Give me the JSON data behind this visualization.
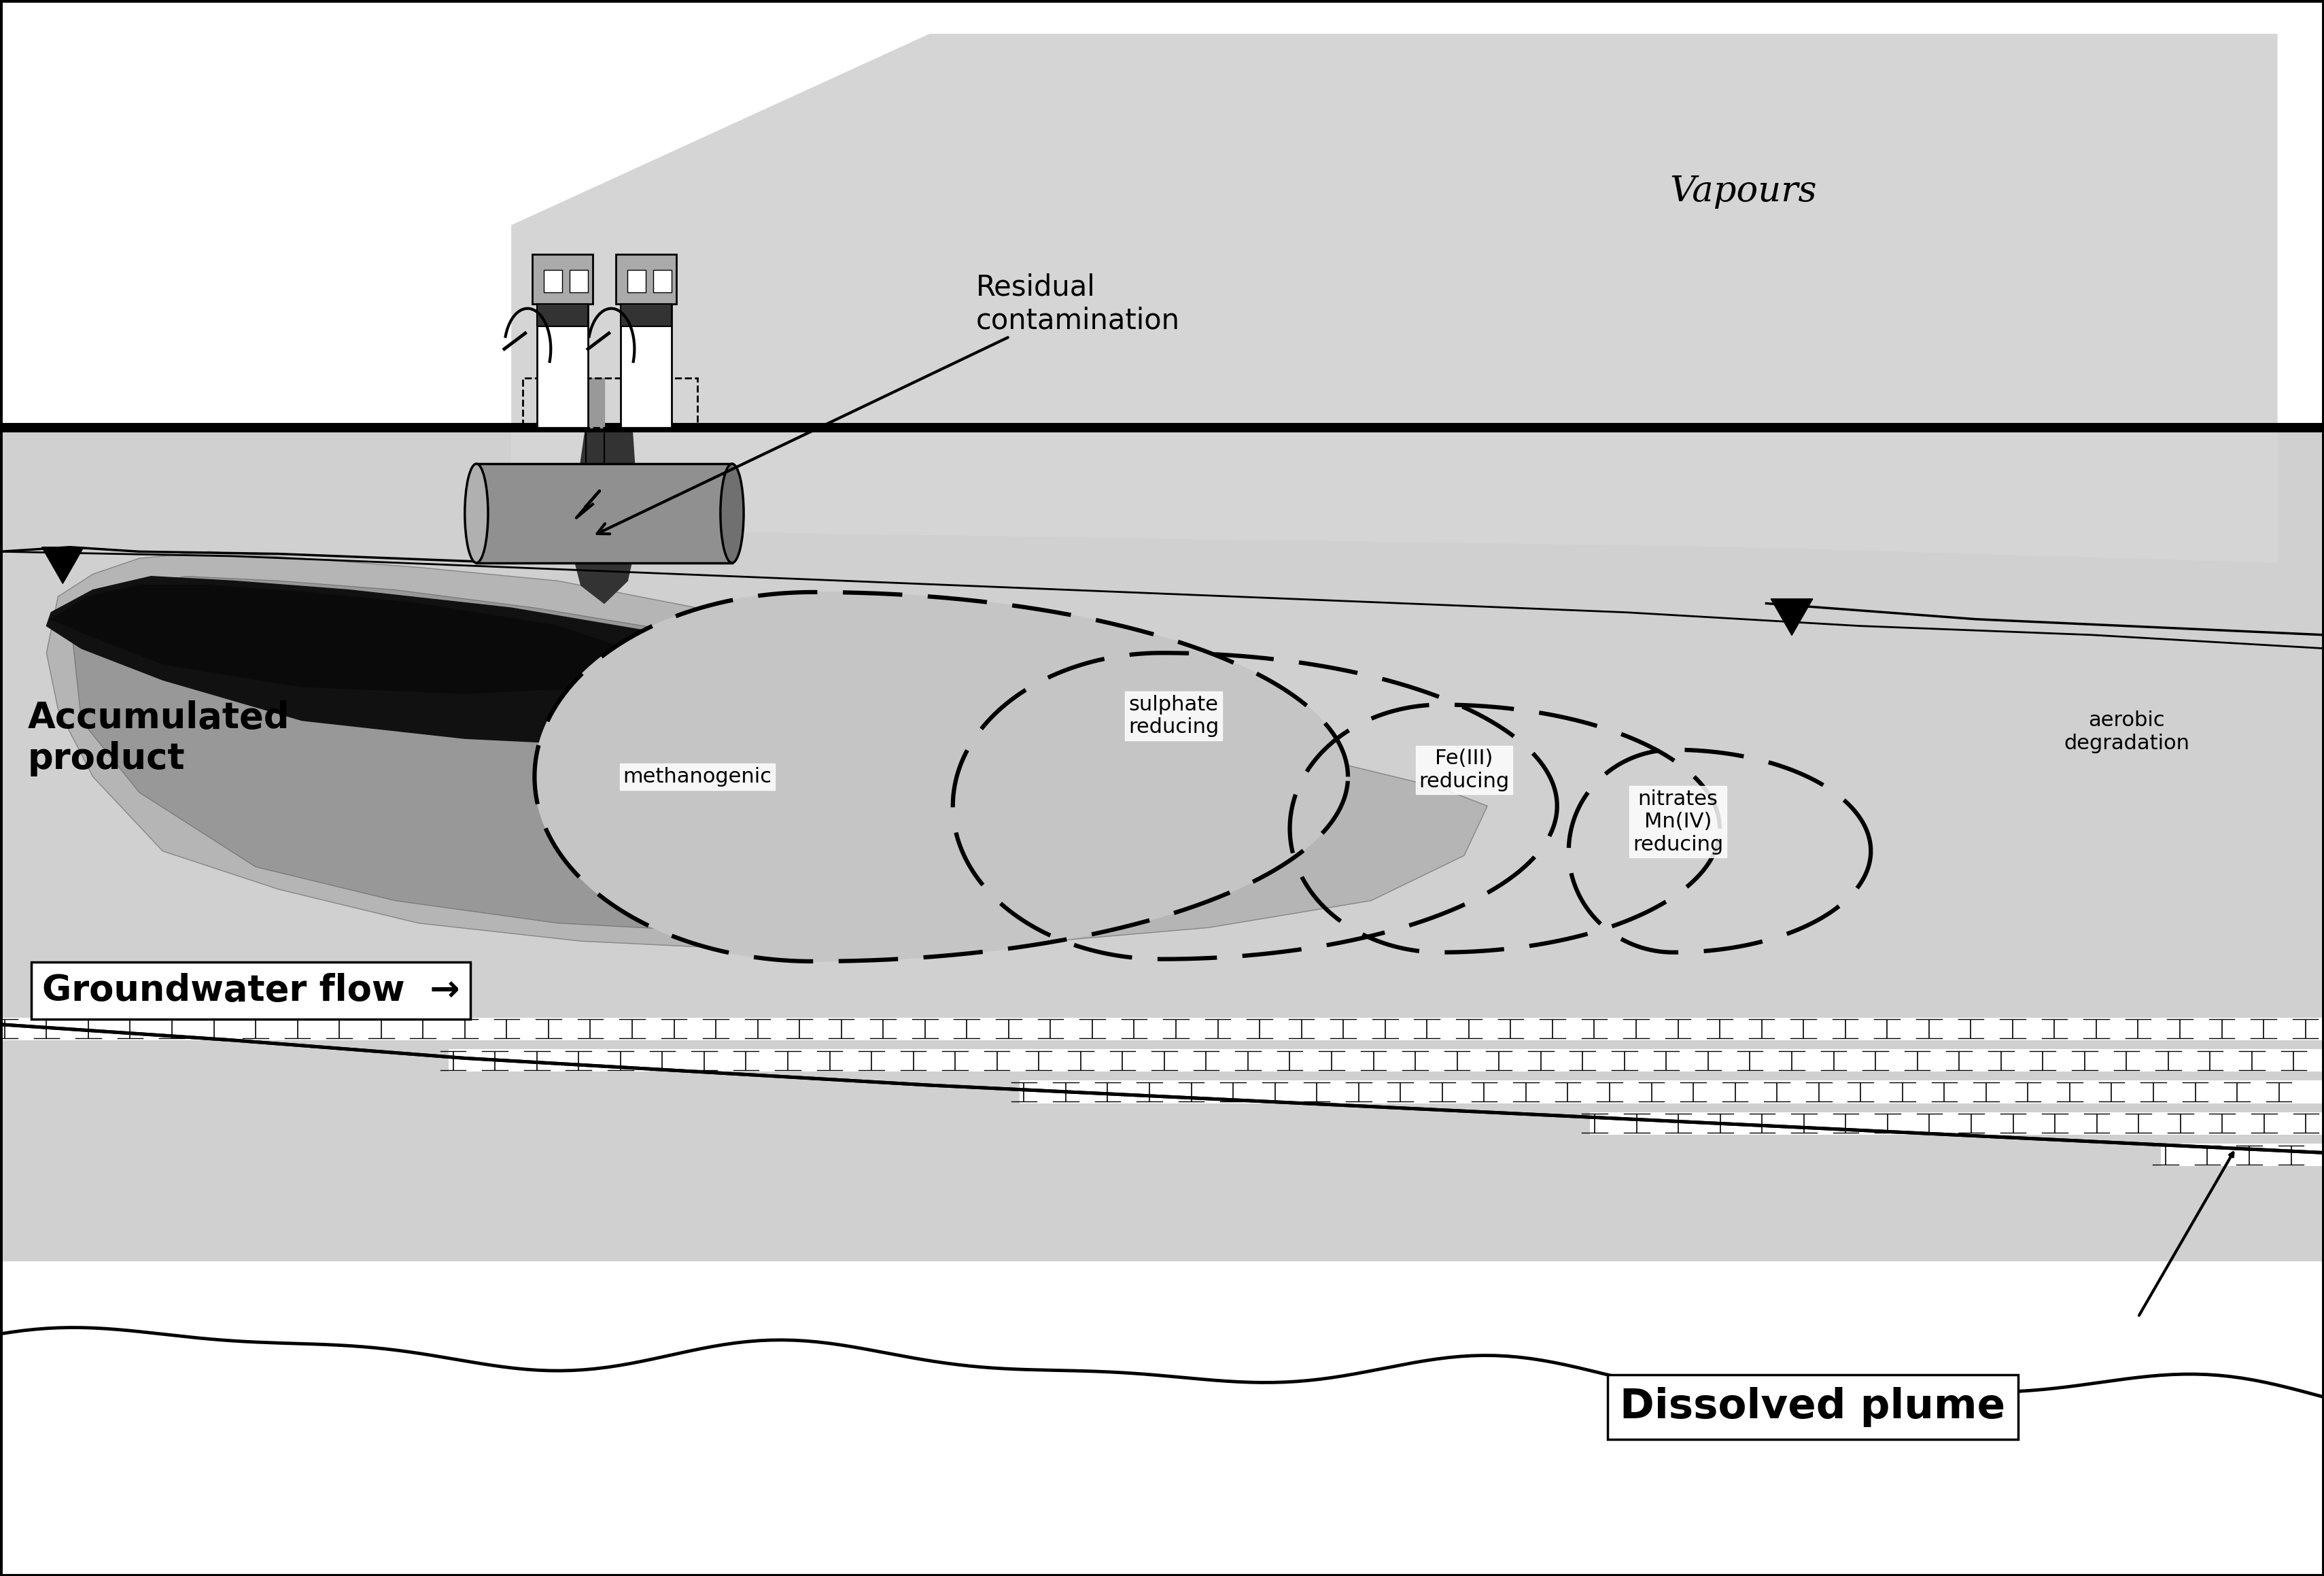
{
  "background_color": "#ffffff",
  "subsurface_color": "#d0d0d0",
  "lighter_gray": "#e0e0e0",
  "vapour_color": "#c8c8c8",
  "plume_outer": "#b8b8b8",
  "plume_mid": "#999999",
  "plume_dark": "#888888",
  "napl_color": "#111111",
  "labels": {
    "vapours": "Vapours",
    "residual_contamination": "Residual\ncontamination",
    "accumulated_product": "Accumulated\nproduct",
    "methanogenic": "methanogenic",
    "sulphate_reducing": "sulphate\nreducing",
    "fe_reducing": "Fe(III)\nreducing",
    "nitrates_reducing": "nitrates\nMn(IV)\nreducing",
    "aerobic_degradation": "aerobic\ndegradation",
    "groundwater_flow": "Groundwater flow",
    "dissolved_plume": "Dissolved plume"
  },
  "fs_large": 38,
  "fs_medium": 30,
  "fs_small": 26,
  "fs_zone": 22
}
